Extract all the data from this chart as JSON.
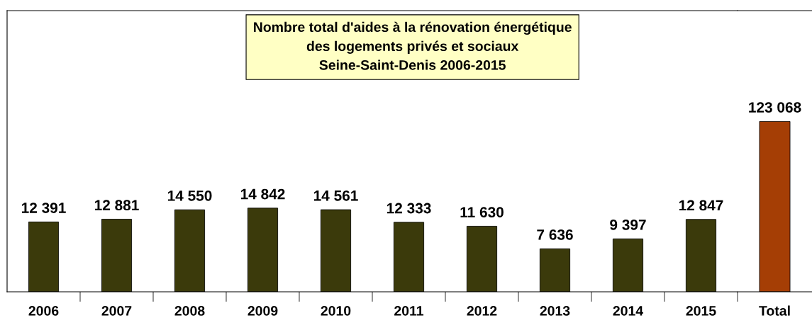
{
  "chart_data": [
    {
      "type": "bar",
      "title": "Nombre total d'aides à la rénovation énergétique\ndes logements privés et sociaux\nSeine-Saint-Denis 2006-2015",
      "categories": [
        "2006",
        "2007",
        "2008",
        "2009",
        "2010",
        "2011",
        "2012",
        "2013",
        "2014",
        "2015"
      ],
      "values": [
        12391,
        12881,
        14550,
        14842,
        14561,
        12333,
        11630,
        7636,
        9397,
        12847
      ],
      "value_labels": [
        "12 391",
        "12 881",
        "14 550",
        "14 842",
        "14 561",
        "12 333",
        "11 630",
        "7 636",
        "9 397",
        "12 847"
      ],
      "color": "#3b3a0b",
      "grid": false,
      "legend": false
    },
    {
      "type": "bar",
      "categories": [
        "Total"
      ],
      "values": [
        123068
      ],
      "value_labels": [
        "123 068"
      ],
      "color": "#a53e05",
      "grid": false,
      "legend": false
    }
  ]
}
